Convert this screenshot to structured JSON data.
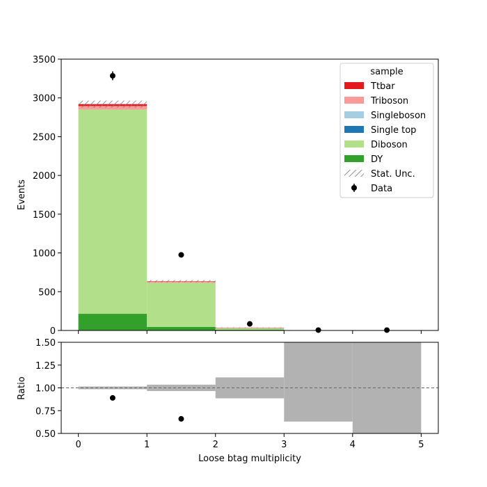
{
  "chart_data": [
    {
      "type": "bar",
      "stacked": true,
      "xlabel": "",
      "ylabel": "Events",
      "xlim": [
        -0.25,
        5.25
      ],
      "ylim": [
        0,
        3500
      ],
      "yticks": [
        0,
        500,
        1000,
        1500,
        2000,
        2500,
        3000,
        3500
      ],
      "xticks": [
        0,
        1,
        2,
        3,
        4,
        5
      ],
      "show_xticklabels": false,
      "bin_edges": [
        0,
        1,
        2,
        3,
        4,
        5
      ],
      "legend": {
        "title": "sample",
        "placement": "top-right"
      },
      "series": [
        {
          "name": "DY",
          "color": "#33a02c",
          "values": [
            215,
            45,
            10,
            1,
            0
          ]
        },
        {
          "name": "Diboson",
          "color": "#b2df8a",
          "values": [
            2635,
            570,
            18,
            3,
            0
          ]
        },
        {
          "name": "Single top",
          "color": "#1f78b4",
          "values": [
            0,
            0,
            0,
            0,
            0
          ]
        },
        {
          "name": "Singleboson",
          "color": "#a6cee3",
          "values": [
            0,
            0,
            0,
            0,
            0
          ]
        },
        {
          "name": "Triboson",
          "color": "#fb9a99",
          "values": [
            45,
            15,
            4,
            0,
            0
          ]
        },
        {
          "name": "Ttbar",
          "color": "#e31a1c",
          "values": [
            25,
            5,
            3,
            0,
            0
          ]
        }
      ],
      "stat_unc": {
        "name": "Stat. Unc.",
        "totals": [
          2920,
          635,
          35,
          4,
          0
        ],
        "errors": [
          45,
          15,
          5,
          1.5,
          0
        ]
      },
      "data": {
        "name": "Data",
        "x": [
          0.5,
          1.5,
          2.5,
          3.5,
          4.5
        ],
        "y": [
          3285,
          975,
          85,
          5,
          5
        ],
        "yerr": [
          57,
          31,
          9,
          2,
          2
        ]
      }
    },
    {
      "type": "bar",
      "xlabel": "Loose btag multiplicity",
      "ylabel": "Ratio",
      "xlim": [
        -0.25,
        5.25
      ],
      "ylim": [
        0.5,
        1.5
      ],
      "yticks": [
        "0.50",
        "0.75",
        "1.00",
        "1.25",
        "1.50"
      ],
      "xticks": [
        "0",
        "1",
        "2",
        "3",
        "4",
        "5"
      ],
      "reference_line": 1.0,
      "unc_band": {
        "bin_edges": [
          0,
          1,
          2,
          3,
          4,
          5
        ],
        "low": [
          0.985,
          0.965,
          0.885,
          0.63,
          0.0
        ],
        "high": [
          1.015,
          1.035,
          1.115,
          1.5,
          1.5
        ]
      },
      "points": {
        "x": [
          0.5,
          1.5
        ],
        "y": [
          0.89,
          0.66
        ]
      }
    }
  ]
}
